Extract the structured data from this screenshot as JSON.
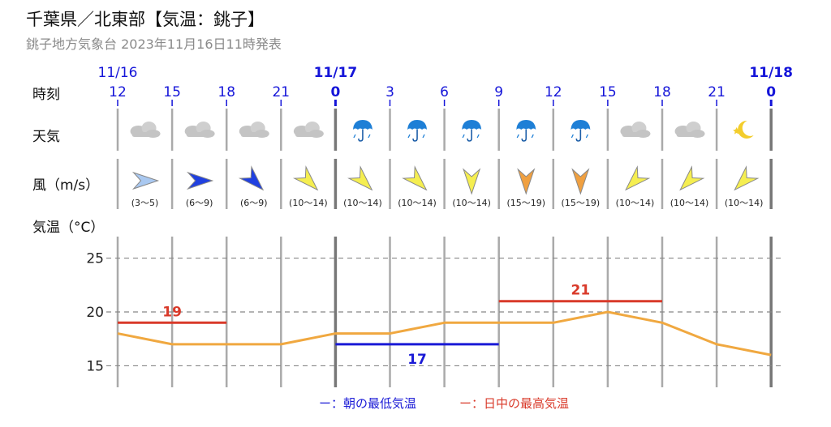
{
  "header": {
    "title": "千葉県／北東部【気温：銚子】",
    "subtitle": "銚子地方気象台 2023年11月16日11時発表"
  },
  "row_labels": {
    "time": "時刻",
    "weather": "天気",
    "wind": "風（m/s）",
    "temperature": "気温（°C）"
  },
  "dates": [
    {
      "label": "11/16",
      "slot": 0,
      "bold": false
    },
    {
      "label": "11/17",
      "slot": 4,
      "bold": true
    },
    {
      "label": "11/18",
      "slot": 12,
      "bold": true
    }
  ],
  "hours": [
    "12",
    "15",
    "18",
    "21",
    "0",
    "3",
    "6",
    "9",
    "12",
    "15",
    "18",
    "21",
    "0"
  ],
  "weather": [
    "cloudy-icon",
    "cloudy-icon",
    "cloudy-icon",
    "cloudy-icon",
    "umbrella-rain-icon",
    "umbrella-rain-icon",
    "umbrella-rain-icon",
    "umbrella-rain-icon",
    "umbrella-rain-icon",
    "cloudy-icon",
    "cloudy-icon",
    "moon-star-icon"
  ],
  "wind": [
    {
      "range": "(3〜5)",
      "dir": "east",
      "color": "#a9c8f0"
    },
    {
      "range": "(6〜9)",
      "dir": "east",
      "color": "#2040e0"
    },
    {
      "range": "(6〜9)",
      "dir": "southeast",
      "color": "#2040e0"
    },
    {
      "range": "(10〜14)",
      "dir": "southeast",
      "color": "#f5ee50"
    },
    {
      "range": "(10〜14)",
      "dir": "southeast",
      "color": "#f5ee50"
    },
    {
      "range": "(10〜14)",
      "dir": "southeast",
      "color": "#f5ee50"
    },
    {
      "range": "(10〜14)",
      "dir": "south",
      "color": "#f5ee50"
    },
    {
      "range": "(15〜19)",
      "dir": "south",
      "color": "#f0a040"
    },
    {
      "range": "(15〜19)",
      "dir": "south",
      "color": "#f0a040"
    },
    {
      "range": "(10〜14)",
      "dir": "southwest",
      "color": "#f5ee50"
    },
    {
      "range": "(10〜14)",
      "dir": "southwest",
      "color": "#f5ee50"
    },
    {
      "range": "(10〜14)",
      "dir": "southwest",
      "color": "#f5ee50"
    }
  ],
  "chart_data": {
    "type": "line",
    "x": [
      "11/16 12",
      "15",
      "18",
      "21",
      "11/17 0",
      "3",
      "6",
      "9",
      "12",
      "15",
      "18",
      "21",
      "11/18 0"
    ],
    "series": [
      {
        "values": [
          18,
          17,
          17,
          17,
          18,
          18,
          19,
          19,
          19,
          20,
          19,
          17,
          16
        ],
        "color": "#f0a840"
      }
    ],
    "ylim": [
      13,
      27
    ],
    "yticks": [
      15,
      20,
      25
    ],
    "grid": true,
    "min_temp": {
      "value": 17,
      "label": "17",
      "from_slot": 4,
      "to_slot": 7,
      "color": "#1a1ad6"
    },
    "max_temps": [
      {
        "value": 19,
        "label": "19",
        "from_slot": 0,
        "to_slot": 2,
        "color": "#d93a2a"
      },
      {
        "value": 21,
        "label": "21",
        "from_slot": 7,
        "to_slot": 10,
        "color": "#d93a2a"
      }
    ]
  },
  "legend": {
    "min_label": "ー：朝の最低気温",
    "max_label": "ー：日中の最高気温",
    "min_color": "#1a1ad6",
    "max_color": "#d93a2a"
  }
}
